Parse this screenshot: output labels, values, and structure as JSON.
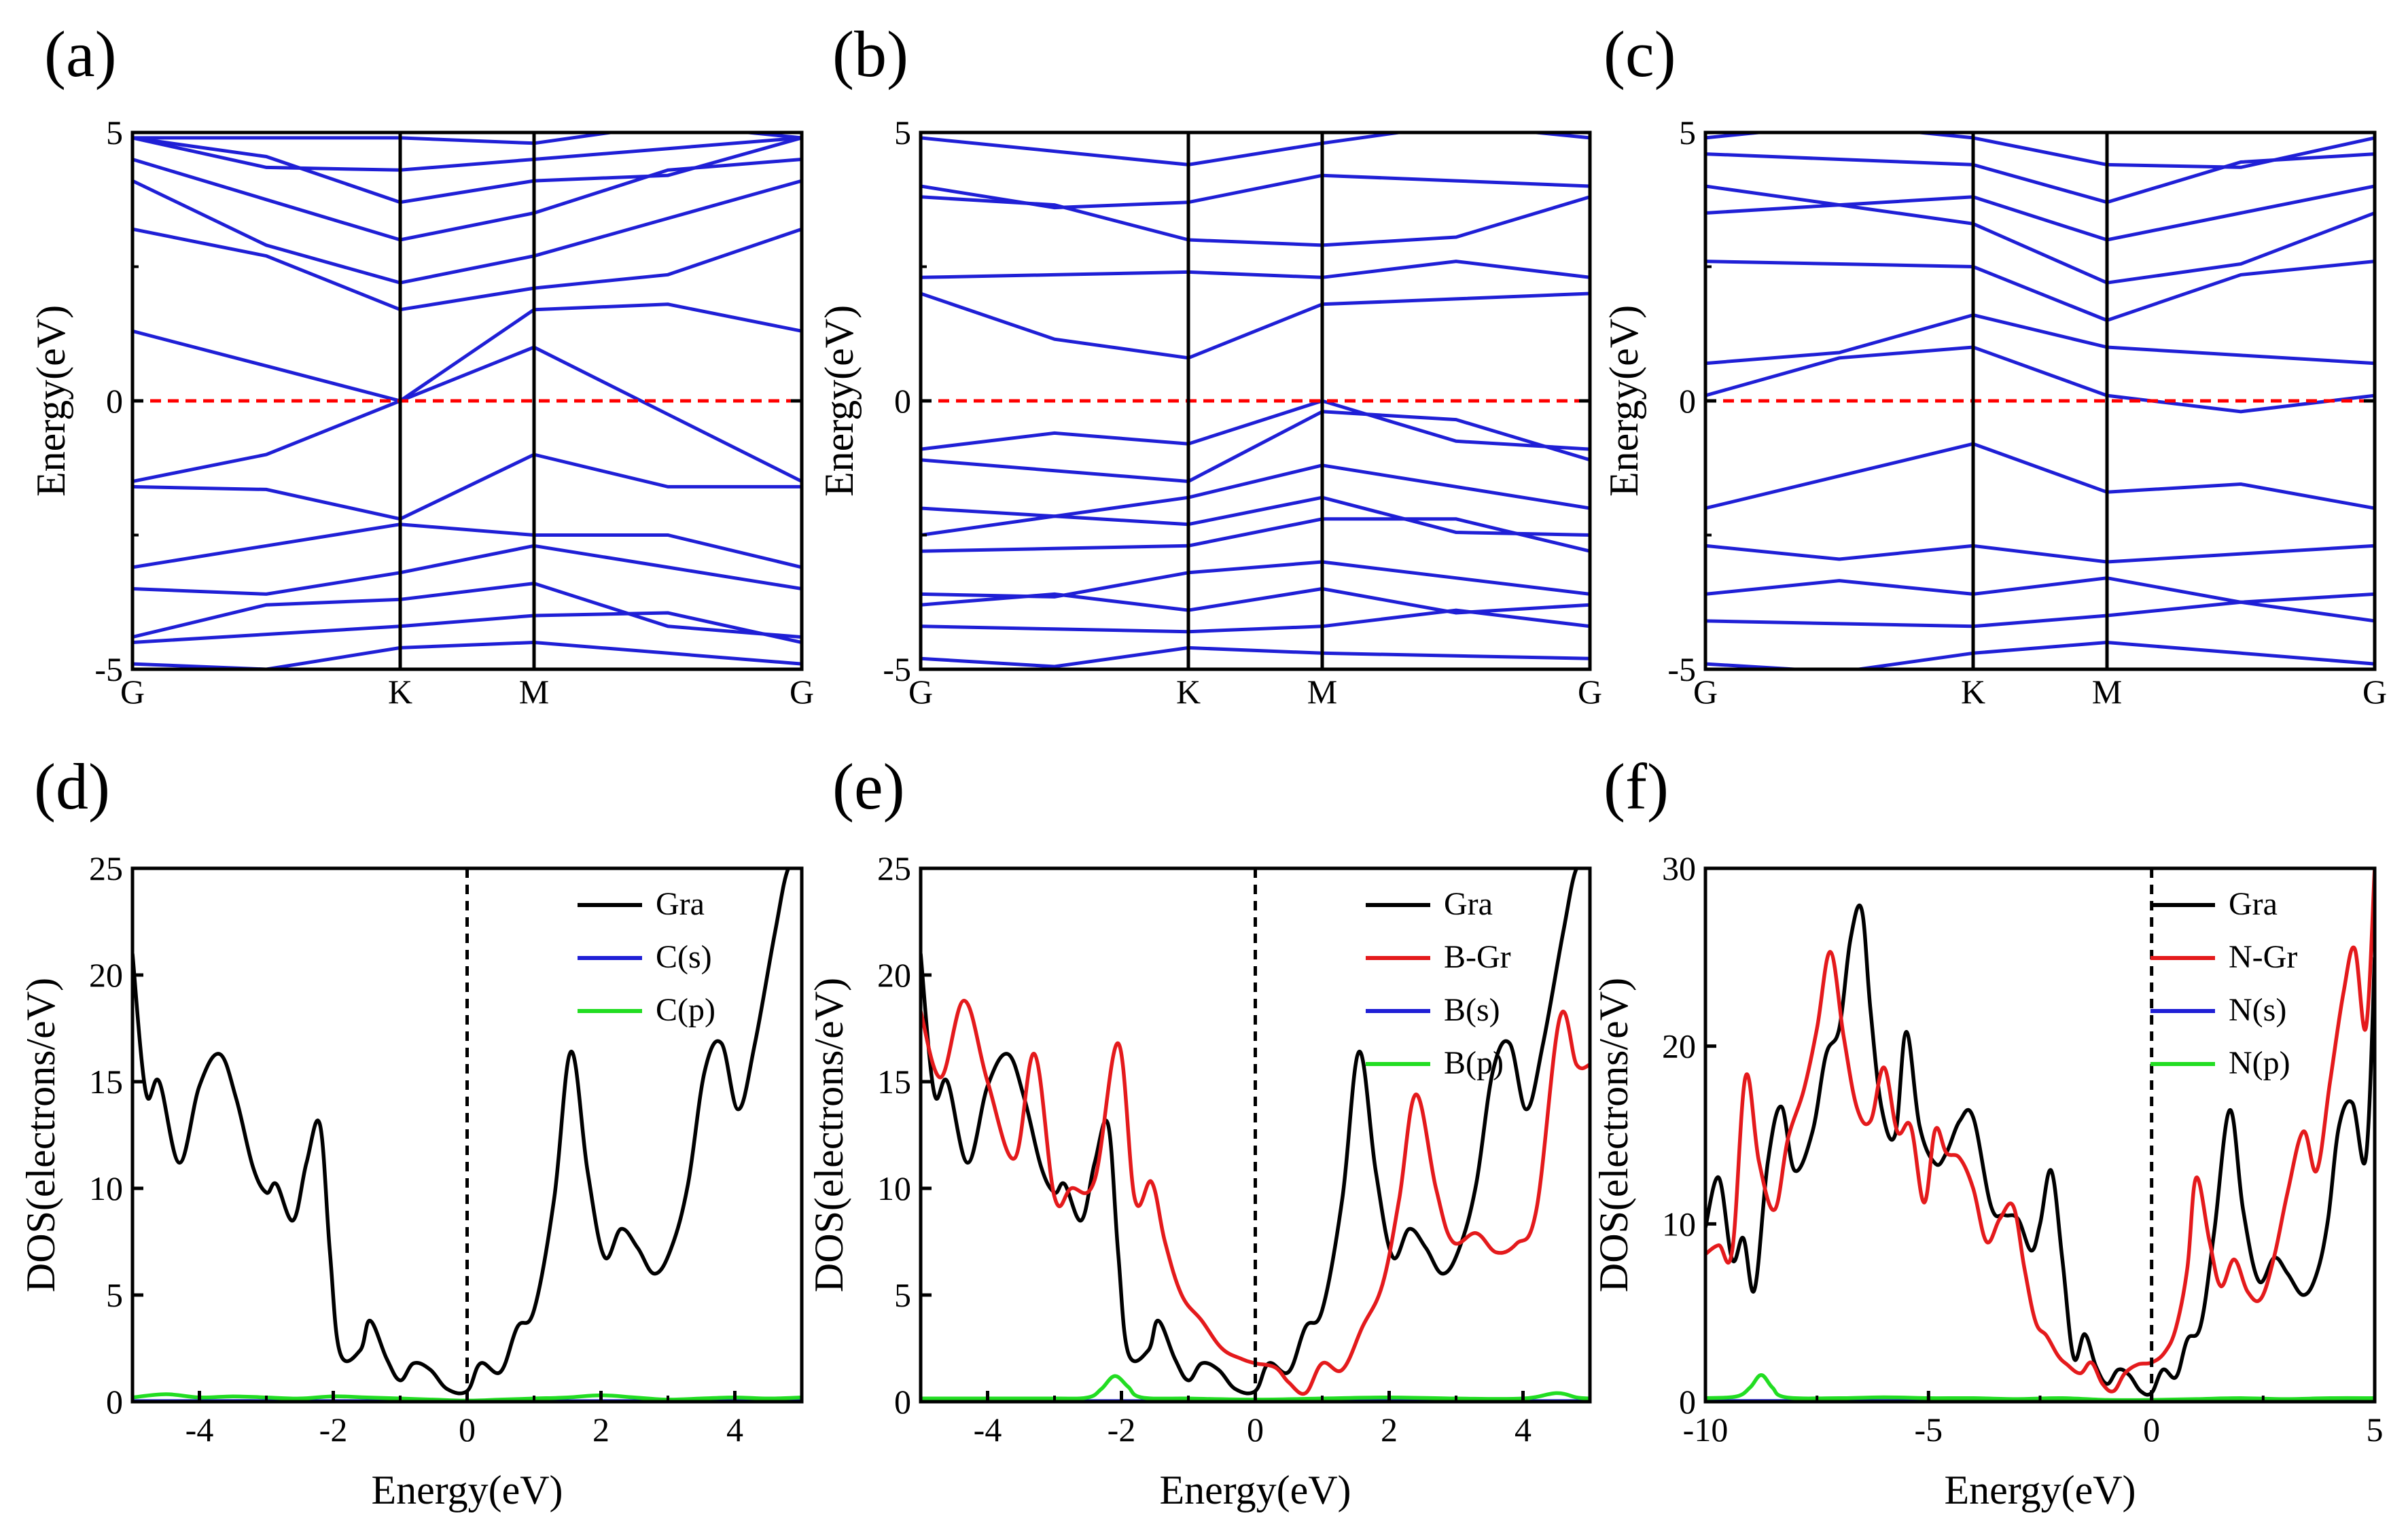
{
  "figure": {
    "colors": {
      "band": "#1f1fd6",
      "fermi_red": "#ff0000",
      "black": "#000000",
      "red": "#e41a1c",
      "blue": "#1f1fd6",
      "green": "#22dd22"
    }
  },
  "chart_data": [
    {
      "id": "a",
      "panel_label": "(a)",
      "type": "line",
      "kind": "band",
      "ylabel": "Energy(eV)",
      "ylim": [
        -5,
        5
      ],
      "yticks": [
        -5,
        0,
        5
      ],
      "ytick_labels": [
        "-5",
        "0",
        "5"
      ],
      "kpoints": [
        "G",
        "K",
        "M",
        "G"
      ],
      "kpos": [
        0,
        1,
        1.5,
        2.5
      ],
      "fermi_level": 0,
      "band_energies_at_G": [
        -4.9,
        -4.5,
        -4.4,
        -3.5,
        -3.1,
        -1.6,
        -1.5,
        1.3,
        3.2,
        4.1,
        4.5,
        4.9
      ],
      "band_energies_at_K": [
        -4.6,
        -4.2,
        -3.7,
        -3.2,
        -2.3,
        -2.2,
        0.0,
        0.0,
        1.7,
        2.2,
        3.0,
        3.7,
        4.3,
        4.9
      ],
      "band_energies_at_M": [
        -4.5,
        -4.0,
        -3.4,
        -2.7,
        -2.5,
        -1.0,
        1.0,
        1.7,
        2.1,
        2.7,
        3.5,
        4.1,
        4.5,
        4.8
      ]
    },
    {
      "id": "b",
      "panel_label": "(b)",
      "type": "line",
      "kind": "band",
      "ylabel": "Energy(eV)",
      "ylim": [
        -5,
        5
      ],
      "yticks": [
        -5,
        0,
        5
      ],
      "ytick_labels": [
        "-5",
        "0",
        "5"
      ],
      "kpoints": [
        "G",
        "K",
        "M",
        "G"
      ],
      "kpos": [
        0,
        1,
        1.5,
        2.5
      ],
      "fermi_level": 0,
      "band_energies_at_G": [
        -4.8,
        -4.2,
        -3.8,
        -3.6,
        -2.8,
        -2.5,
        -2.0,
        -1.1,
        -0.9,
        2.0,
        2.3,
        3.8,
        4.0,
        4.9
      ],
      "band_energies_at_K": [
        -4.6,
        -4.3,
        -3.9,
        -3.2,
        -2.7,
        -2.3,
        -1.8,
        -1.5,
        -0.8,
        0.8,
        2.4,
        3.0,
        3.7,
        4.4
      ],
      "band_energies_at_M": [
        -4.7,
        -4.2,
        -3.5,
        -3.0,
        -2.2,
        -1.8,
        -1.2,
        -0.2,
        0.0,
        1.8,
        2.3,
        2.9,
        4.2,
        4.8
      ]
    },
    {
      "id": "c",
      "panel_label": "(c)",
      "type": "line",
      "kind": "band",
      "ylabel": "Energy(eV)",
      "ylim": [
        -5,
        5
      ],
      "yticks": [
        -5,
        0,
        5
      ],
      "ytick_labels": [
        "-5",
        "0",
        "5"
      ],
      "kpoints": [
        "G",
        "K",
        "M",
        "G"
      ],
      "kpos": [
        0,
        1,
        1.5,
        2.5
      ],
      "fermi_level": 0,
      "band_energies_at_G": [
        -4.9,
        -4.1,
        -3.6,
        -2.7,
        -2.0,
        0.1,
        0.7,
        2.6,
        3.5,
        4.0,
        4.6,
        4.9
      ],
      "band_energies_at_K": [
        -4.7,
        -4.2,
        -3.6,
        -2.7,
        -0.8,
        1.0,
        1.6,
        2.5,
        3.3,
        3.8,
        4.4,
        4.9
      ],
      "band_energies_at_M": [
        -4.5,
        -4.0,
        -3.3,
        -3.0,
        -1.7,
        0.1,
        1.0,
        1.5,
        2.2,
        3.0,
        3.7,
        4.4
      ]
    },
    {
      "id": "d",
      "panel_label": "(d)",
      "type": "line",
      "kind": "dos",
      "xlabel": "Energy(eV)",
      "ylabel": "DOS(electrons/eV)",
      "xlim": [
        -5,
        5
      ],
      "ylim": [
        0,
        25
      ],
      "xticks": [
        -4,
        -2,
        0,
        2,
        4
      ],
      "xtick_labels": [
        "-4",
        "-2",
        "0",
        "2",
        "4"
      ],
      "yticks": [
        0,
        5,
        10,
        15,
        20,
        25
      ],
      "ytick_labels": [
        "0",
        "5",
        "10",
        "15",
        "20",
        "25"
      ],
      "fermi_level": 0,
      "legend_position": "upper-right",
      "series": [
        {
          "name": "Gra",
          "color": "#000000",
          "x": [
            -5,
            -4.8,
            -4.6,
            -4.3,
            -4.0,
            -3.7,
            -3.45,
            -3.2,
            -3.0,
            -2.85,
            -2.6,
            -2.4,
            -2.2,
            -2.05,
            -1.9,
            -1.6,
            -1.45,
            -1.2,
            -1.0,
            -0.8,
            -0.55,
            -0.3,
            0.0,
            0.2,
            0.5,
            0.75,
            1.0,
            1.3,
            1.55,
            1.8,
            2.05,
            2.3,
            2.55,
            2.8,
            3.05,
            3.3,
            3.55,
            3.8,
            4.05,
            4.3,
            4.6,
            4.8,
            5.0
          ],
          "y": [
            21,
            14.5,
            15,
            11.2,
            14.8,
            16.3,
            14.2,
            11.0,
            9.8,
            10.2,
            8.5,
            11.2,
            13.0,
            7.0,
            2.3,
            2.4,
            3.8,
            2.0,
            1.0,
            1.8,
            1.5,
            0.6,
            0.5,
            1.8,
            1.4,
            3.5,
            4.3,
            9.5,
            16.4,
            10.8,
            6.8,
            8.1,
            7.2,
            6.0,
            7.2,
            10.2,
            15.5,
            16.8,
            13.7,
            16.8,
            22,
            25,
            25
          ]
        },
        {
          "name": "C(s)",
          "color": "#1f1fd6",
          "x": [
            -5,
            -2.5,
            0,
            2.5,
            5
          ],
          "y": [
            0.03,
            0.03,
            0.02,
            0.03,
            0.03
          ]
        },
        {
          "name": "C(p)",
          "color": "#22dd22",
          "x": [
            -5,
            -4.5,
            -4.0,
            -3.5,
            -3.0,
            -2.5,
            -2.0,
            -1.5,
            -1.0,
            -0.5,
            0,
            0.5,
            1.0,
            1.5,
            2.0,
            2.5,
            3.0,
            3.5,
            4.0,
            4.5,
            5.0
          ],
          "y": [
            0.2,
            0.35,
            0.2,
            0.25,
            0.2,
            0.15,
            0.25,
            0.2,
            0.15,
            0.1,
            0.05,
            0.1,
            0.15,
            0.2,
            0.3,
            0.2,
            0.1,
            0.15,
            0.2,
            0.15,
            0.2
          ]
        }
      ]
    },
    {
      "id": "e",
      "panel_label": "(e)",
      "type": "line",
      "kind": "dos",
      "xlabel": "Energy(eV)",
      "ylabel": "DOS(electrons/eV)",
      "xlim": [
        -5,
        5
      ],
      "ylim": [
        0,
        25
      ],
      "xticks": [
        -4,
        -2,
        0,
        2,
        4
      ],
      "xtick_labels": [
        "-4",
        "-2",
        "0",
        "2",
        "4"
      ],
      "yticks": [
        0,
        5,
        10,
        15,
        20,
        25
      ],
      "ytick_labels": [
        "0",
        "5",
        "10",
        "15",
        "20",
        "25"
      ],
      "fermi_level": 0,
      "legend_position": "upper-right",
      "series": [
        {
          "name": "Gra",
          "color": "#000000",
          "x": [
            -5,
            -4.8,
            -4.6,
            -4.3,
            -4.0,
            -3.7,
            -3.45,
            -3.2,
            -3.0,
            -2.85,
            -2.6,
            -2.4,
            -2.2,
            -2.05,
            -1.9,
            -1.6,
            -1.45,
            -1.2,
            -1.0,
            -0.8,
            -0.55,
            -0.3,
            0.0,
            0.2,
            0.5,
            0.75,
            1.0,
            1.3,
            1.55,
            1.8,
            2.05,
            2.3,
            2.55,
            2.8,
            3.05,
            3.3,
            3.55,
            3.8,
            4.05,
            4.3,
            4.6,
            4.8,
            5.0
          ],
          "y": [
            21,
            14.5,
            15,
            11.2,
            14.8,
            16.3,
            14.2,
            11.0,
            9.8,
            10.2,
            8.5,
            11.2,
            13.0,
            7.0,
            2.3,
            2.4,
            3.8,
            2.0,
            1.0,
            1.8,
            1.5,
            0.6,
            0.5,
            1.8,
            1.4,
            3.5,
            4.3,
            9.5,
            16.4,
            10.8,
            6.8,
            8.1,
            7.2,
            6.0,
            7.2,
            10.2,
            15.5,
            16.8,
            13.7,
            16.8,
            22,
            25,
            25
          ]
        },
        {
          "name": "B-Gr",
          "color": "#e41a1c",
          "x": [
            -5,
            -4.7,
            -4.35,
            -4.0,
            -3.6,
            -3.3,
            -3.0,
            -2.75,
            -2.4,
            -2.05,
            -1.8,
            -1.55,
            -1.35,
            -1.1,
            -0.8,
            -0.5,
            -0.2,
            0.0,
            0.3,
            0.5,
            0.75,
            1.0,
            1.3,
            1.6,
            1.9,
            2.15,
            2.4,
            2.7,
            2.95,
            3.3,
            3.6,
            3.9,
            4.2,
            4.55,
            4.8,
            5.0
          ],
          "y": [
            18.3,
            15.2,
            18.8,
            15.0,
            11.4,
            16.3,
            9.6,
            10.0,
            10.4,
            16.8,
            9.5,
            10.3,
            7.5,
            5.0,
            3.8,
            2.5,
            2.0,
            1.8,
            1.6,
            0.9,
            0.4,
            1.8,
            1.5,
            3.5,
            5.5,
            9.5,
            14.4,
            10.0,
            7.5,
            7.9,
            7.0,
            7.4,
            9.0,
            18.0,
            15.8,
            15.8
          ]
        },
        {
          "name": "B(s)",
          "color": "#1f1fd6",
          "x": [
            -5,
            -2.5,
            0,
            2.5,
            5
          ],
          "y": [
            0.03,
            0.03,
            0.02,
            0.03,
            0.03
          ]
        },
        {
          "name": "B(p)",
          "color": "#22dd22",
          "x": [
            -5,
            -4.0,
            -3.0,
            -2.5,
            -2.3,
            -2.1,
            -1.9,
            -1.7,
            -1.0,
            0,
            1.0,
            2.0,
            3.0,
            4.0,
            4.5,
            4.8,
            5.0
          ],
          "y": [
            0.15,
            0.15,
            0.15,
            0.2,
            0.6,
            1.2,
            0.7,
            0.2,
            0.15,
            0.1,
            0.15,
            0.2,
            0.15,
            0.15,
            0.4,
            0.2,
            0.15
          ]
        }
      ]
    },
    {
      "id": "f",
      "panel_label": "(f)",
      "type": "line",
      "kind": "dos",
      "xlabel": "Energy(eV)",
      "ylabel": "DOS(electrons/eV)",
      "xlim": [
        -10,
        5
      ],
      "ylim": [
        0,
        30
      ],
      "xticks": [
        -10,
        -5,
        0,
        5
      ],
      "xtick_labels": [
        "-10",
        "-5",
        "0",
        "5"
      ],
      "yticks": [
        0,
        10,
        20,
        30
      ],
      "ytick_labels": [
        "0",
        "10",
        "20",
        "30"
      ],
      "fermi_level": 0,
      "legend_position": "upper-right",
      "series": [
        {
          "name": "Gra",
          "color": "#000000",
          "x": [
            -10,
            -9.7,
            -9.4,
            -9.15,
            -8.9,
            -8.6,
            -8.3,
            -8.0,
            -7.6,
            -7.3,
            -7.0,
            -6.75,
            -6.5,
            -6.3,
            -6.05,
            -5.75,
            -5.5,
            -5.2,
            -4.85,
            -4.6,
            -4.3,
            -4.0,
            -3.6,
            -3.3,
            -3.0,
            -2.7,
            -2.5,
            -2.25,
            -2.0,
            -1.75,
            -1.5,
            -1.25,
            -1.0,
            -0.75,
            -0.5,
            -0.25,
            0,
            0.25,
            0.55,
            0.8,
            1.1,
            1.4,
            1.75,
            2.05,
            2.4,
            2.75,
            3.05,
            3.4,
            3.7,
            3.95,
            4.2,
            4.5,
            4.8,
            5.0
          ],
          "y": [
            9.8,
            12.6,
            8.0,
            9.2,
            6.3,
            13.5,
            16.6,
            13.0,
            15.2,
            19.5,
            21.0,
            26.0,
            27.7,
            22.0,
            16.5,
            15.0,
            20.8,
            15.5,
            13.4,
            14.0,
            15.8,
            16.0,
            11.0,
            10.5,
            10.3,
            8.5,
            10.0,
            13.0,
            8.0,
            2.5,
            3.8,
            2.0,
            1.0,
            1.8,
            1.5,
            0.6,
            0.5,
            1.8,
            1.4,
            3.5,
            4.3,
            9.5,
            16.4,
            10.8,
            6.8,
            8.1,
            7.2,
            6.0,
            7.2,
            10.2,
            15.5,
            16.8,
            13.7,
            25.0
          ]
        },
        {
          "name": "N-Gr",
          "color": "#e41a1c",
          "x": [
            -10,
            -9.7,
            -9.4,
            -9.1,
            -8.8,
            -8.45,
            -8.15,
            -7.8,
            -7.5,
            -7.2,
            -6.9,
            -6.6,
            -6.3,
            -6.0,
            -5.7,
            -5.4,
            -5.1,
            -4.85,
            -4.6,
            -4.3,
            -4.0,
            -3.7,
            -3.4,
            -3.1,
            -2.85,
            -2.6,
            -2.35,
            -2.1,
            -1.9,
            -1.6,
            -1.35,
            -1.1,
            -0.85,
            -0.6,
            -0.3,
            0.0,
            0.3,
            0.55,
            0.8,
            1.0,
            1.3,
            1.55,
            1.85,
            2.15,
            2.45,
            2.75,
            3.05,
            3.4,
            3.7,
            4.0,
            4.3,
            4.55,
            4.8,
            5.0
          ],
          "y": [
            8.3,
            8.8,
            8.5,
            18.3,
            13.5,
            10.8,
            14.8,
            17.5,
            21.0,
            25.3,
            20.5,
            16.5,
            15.8,
            18.8,
            15.2,
            15.5,
            11.2,
            15.3,
            14.0,
            13.7,
            12.0,
            9.0,
            10.3,
            11.0,
            7.5,
            4.5,
            3.7,
            2.6,
            2.1,
            1.6,
            2.2,
            1.0,
            0.6,
            1.6,
            2.1,
            2.2,
            2.8,
            4.2,
            7.5,
            12.6,
            9.0,
            6.5,
            8.0,
            6.2,
            5.8,
            8.2,
            11.8,
            15.2,
            13.0,
            18.0,
            23.0,
            25.5,
            21.0,
            30.0
          ]
        },
        {
          "name": "N(s)",
          "color": "#1f1fd6",
          "x": [
            -10,
            -5,
            0,
            5
          ],
          "y": [
            0.04,
            0.04,
            0.03,
            0.04
          ]
        },
        {
          "name": "N(p)",
          "color": "#22dd22",
          "x": [
            -10,
            -9.3,
            -9.0,
            -8.75,
            -8.5,
            -8.2,
            -7.0,
            -6.0,
            -5.0,
            -4.0,
            -3.0,
            -2.0,
            -1.0,
            0,
            1.0,
            2.0,
            3.0,
            4.0,
            5.0
          ],
          "y": [
            0.2,
            0.3,
            0.8,
            1.5,
            0.8,
            0.25,
            0.2,
            0.25,
            0.2,
            0.2,
            0.15,
            0.2,
            0.1,
            0.1,
            0.15,
            0.2,
            0.15,
            0.2,
            0.2
          ]
        }
      ]
    }
  ]
}
